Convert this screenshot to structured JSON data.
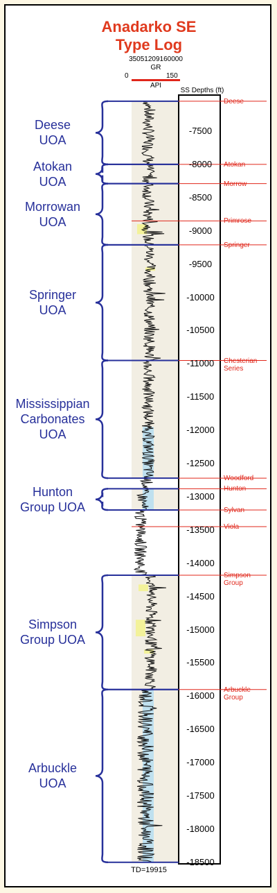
{
  "title": [
    "Anadarko SE",
    "Type Log"
  ],
  "well_id": "35051209160000",
  "curve": {
    "name": "GR",
    "min_label": "0",
    "max_label": "150",
    "unit": "API"
  },
  "depth_header": "SS Depths (ft)",
  "td_label": "TD=19915",
  "colors": {
    "title": "#e03a1e",
    "tops": "#e0261a",
    "units": "#27309a",
    "fill_beige": "#f2eee3",
    "fill_blue": "#bfe0ef",
    "fill_yellow": "#f3f29a"
  },
  "chart_data": {
    "type": "well-log",
    "ylabel": "SS Depths (ft)",
    "y_ticks": [
      "-7500",
      "-8000",
      "-8500",
      "-9000",
      "-9500",
      "-10000",
      "-10500",
      "-11000",
      "-11500",
      "-12000",
      "-12500",
      "-13000",
      "-13500",
      "-14000",
      "-14500",
      "-15000",
      "-15500",
      "-16000",
      "-16500",
      "-17000",
      "-17500",
      "-18000",
      "-18500"
    ],
    "ylim": [
      -7050,
      -18500
    ],
    "x_range": [
      0,
      150
    ],
    "formation_tops": [
      {
        "name": "Deese",
        "depth": -7050
      },
      {
        "name": "Atokan",
        "depth": -8000
      },
      {
        "name": "Morrow",
        "depth": -8290
      },
      {
        "name": "Primrose",
        "depth": -8850
      },
      {
        "name": "Springer",
        "depth": -9210
      },
      {
        "name": "Chesterian Series",
        "depth": -10950
      },
      {
        "name": "Woodford",
        "depth": -12720
      },
      {
        "name": "Hunton",
        "depth": -12880
      },
      {
        "name": "Sylvan",
        "depth": -13200
      },
      {
        "name": "Viola",
        "depth": -13450
      },
      {
        "name": "Simpson Group",
        "depth": -14180
      },
      {
        "name": "Arbuckle Group",
        "depth": -15900
      }
    ],
    "units": [
      {
        "name": "Deese UOA",
        "top": -7050,
        "base": -8000
      },
      {
        "name": "Atokan UOA",
        "top": -8000,
        "base": -8290
      },
      {
        "name": "Morrowan UOA",
        "top": -8290,
        "base": -9210
      },
      {
        "name": "Springer UOA",
        "top": -9210,
        "base": -10950
      },
      {
        "name": "Mississippian Carbonates UOA",
        "top": -10950,
        "base": -12720
      },
      {
        "name": "Hunton Group UOA",
        "top": -12880,
        "base": -13200
      },
      {
        "name": "Simpson Group UOA",
        "top": -14180,
        "base": -15900
      },
      {
        "name": "Arbuckle UOA",
        "top": -15900,
        "base": -18500
      }
    ]
  }
}
